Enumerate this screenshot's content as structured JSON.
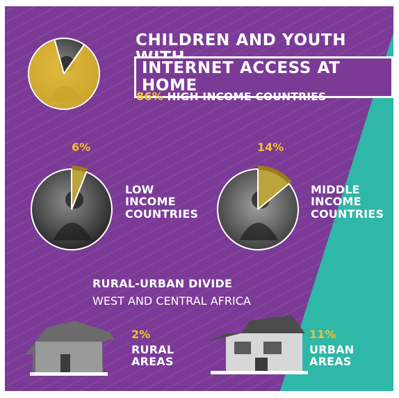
{
  "headline": {
    "line1": "CHILDREN AND YOUTH WITH",
    "line2": "INTERNET ACCESS AT HOME"
  },
  "rural_urban": {
    "heading": "RURAL-URBAN DIVIDE",
    "subheading": "WEST AND CENTRAL AFRICA"
  },
  "colors": {
    "purple": "#7b3a96",
    "teal": "#2fb7a7",
    "highlight": "#f2c230",
    "ring": "#9a7d18",
    "text": "#ffffff"
  },
  "chart_data": [
    {
      "type": "pie",
      "categories": [
        "HIGH INCOME COUNTRIES"
      ],
      "values": [
        86
      ],
      "labels": [
        "86%"
      ],
      "unit": "%"
    },
    {
      "type": "pie",
      "categories": [
        "LOW INCOME COUNTRIES"
      ],
      "values": [
        6
      ],
      "labels": [
        "6%"
      ],
      "unit": "%"
    },
    {
      "type": "pie",
      "categories": [
        "MIDDLE INCOME COUNTRIES"
      ],
      "values": [
        14
      ],
      "labels": [
        "14%"
      ],
      "unit": "%"
    },
    {
      "type": "table",
      "categories": [
        "RURAL AREAS",
        "URBAN AREAS"
      ],
      "values": [
        2,
        11
      ],
      "labels": [
        "2%",
        "11%"
      ],
      "unit": "%"
    }
  ]
}
